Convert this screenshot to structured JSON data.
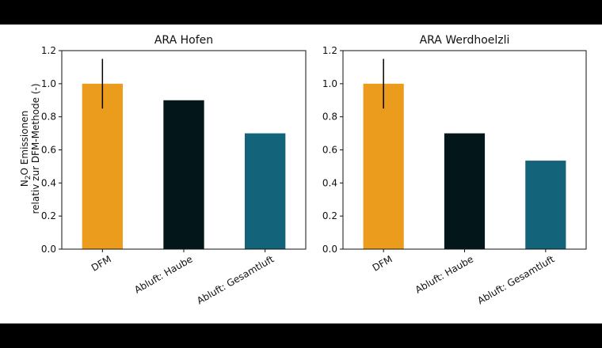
{
  "colors": {
    "letterbox": "#000000",
    "background": "#ffffff",
    "dfm": "#EC9C1C",
    "abluft_haube": "#03171A",
    "abluft_gesamtluft": "#13637B",
    "axis": "#111111",
    "error_bar": "#000000"
  },
  "chart_data": [
    {
      "type": "bar",
      "title": "ARA Hofen",
      "ylabel_line1_main": "N",
      "ylabel_line1_sub": "2",
      "ylabel_line1_rest": "O Emissionen",
      "ylabel_line2": "relativ zur DFM-Methode (-)",
      "categories": [
        "DFM",
        "Abluft: Haube",
        "Abluft: Gesamtluft"
      ],
      "values": [
        1.0,
        0.9,
        0.7
      ],
      "error": [
        0.15,
        null,
        null
      ],
      "ylim": [
        0,
        1.2
      ],
      "yticks": [
        "0.0",
        "0.2",
        "0.4",
        "0.6",
        "0.8",
        "1.0",
        "1.2"
      ]
    },
    {
      "type": "bar",
      "title": "ARA Werdhoelzli",
      "categories": [
        "DFM",
        "Abluft: Haube",
        "Abluft: Gesamtluft"
      ],
      "values": [
        1.0,
        0.7,
        0.535
      ],
      "error": [
        0.15,
        null,
        null
      ],
      "ylim": [
        0,
        1.2
      ],
      "yticks": [
        "0.0",
        "0.2",
        "0.4",
        "0.6",
        "0.8",
        "1.0",
        "1.2"
      ]
    }
  ]
}
